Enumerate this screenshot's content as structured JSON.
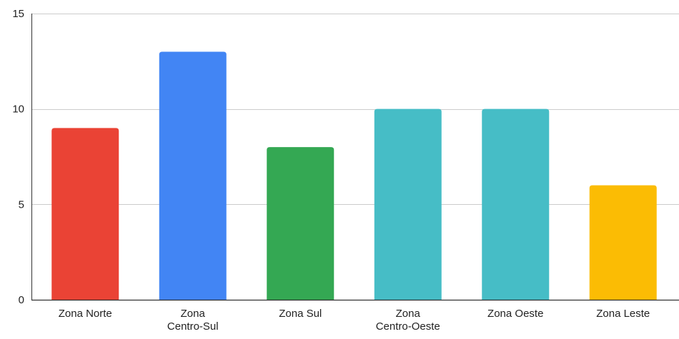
{
  "chart_data": {
    "type": "bar",
    "categories": [
      [
        "Zona Norte"
      ],
      [
        "Zona",
        "Centro-Sul"
      ],
      [
        "Zona Sul"
      ],
      [
        "Zona",
        "Centro-Oeste"
      ],
      [
        "Zona Oeste"
      ],
      [
        "Zona Leste"
      ]
    ],
    "values": [
      9,
      13,
      8,
      10,
      10,
      6
    ],
    "colors": [
      "#ea4335",
      "#4285f4",
      "#34a853",
      "#46bdc6",
      "#46bdc6",
      "#fbbc04"
    ],
    "y_ticks": [
      0,
      5,
      10,
      15
    ],
    "ylim": [
      0,
      15
    ],
    "grid": true,
    "gridline_color": "#cccccc",
    "axis_color": "#333333",
    "title": "",
    "xlabel": "",
    "ylabel": ""
  }
}
